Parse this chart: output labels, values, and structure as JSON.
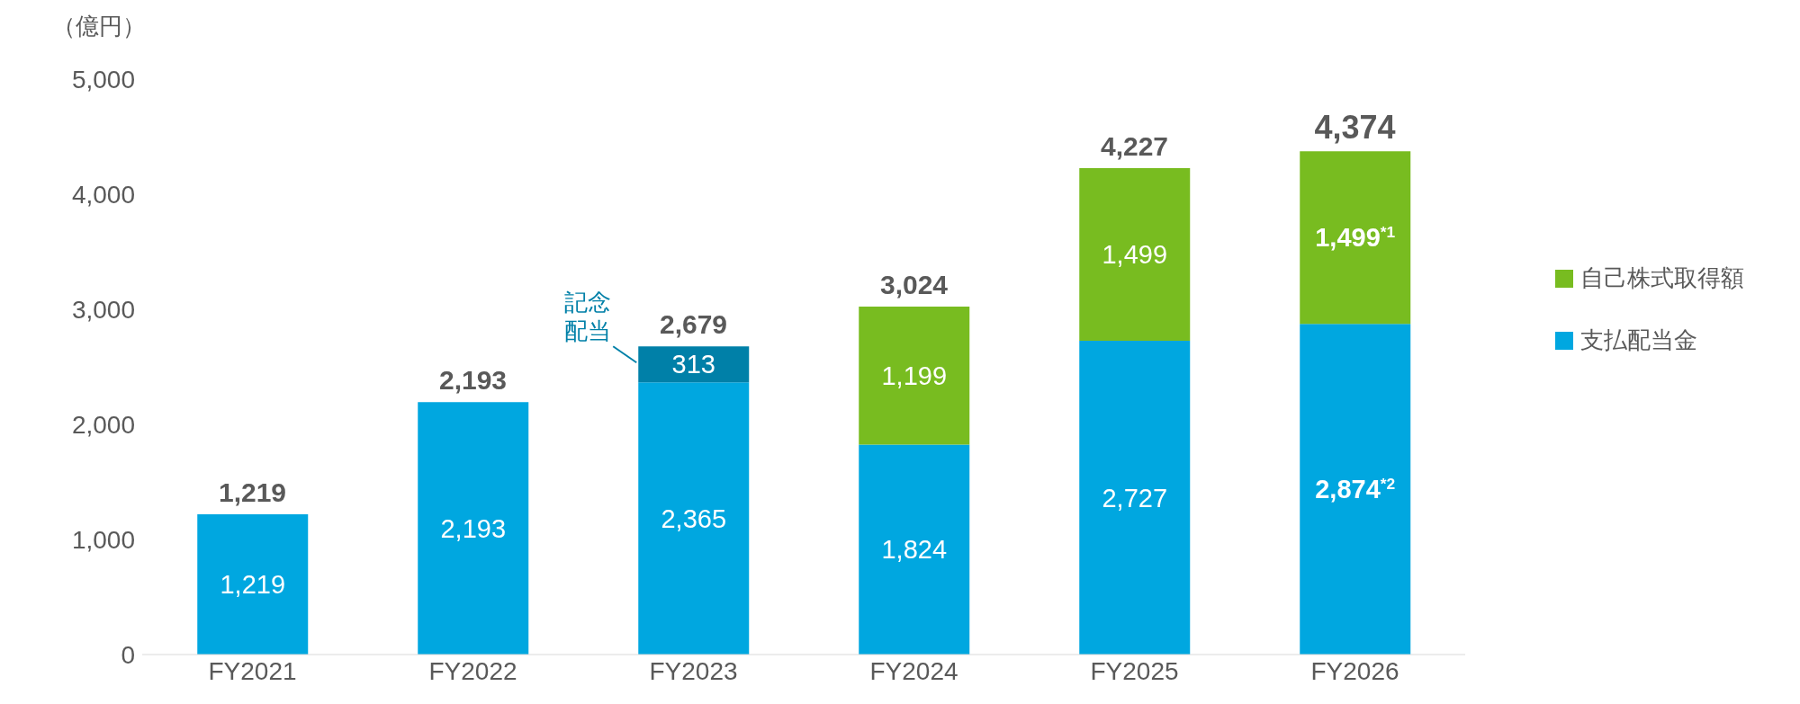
{
  "chart_data": {
    "type": "bar",
    "stacked": true,
    "ylabel": "（億円）",
    "categories": [
      "FY2021",
      "FY2022",
      "FY2023",
      "FY2024",
      "FY2025",
      "FY2026"
    ],
    "series": [
      {
        "name": "支払配当金",
        "color": "#00a7e0",
        "values": [
          1219,
          2193,
          2365,
          1824,
          2727,
          2874
        ],
        "value_labels": [
          "1,219",
          "2,193",
          "2,365",
          "1,824",
          "2,727",
          "2,874$^{*2}$"
        ]
      },
      {
        "color": "#0080a8",
        "values": [
          null,
          null,
          313,
          null,
          null,
          null
        ],
        "value_labels": [
          null,
          null,
          "313",
          null,
          null,
          null
        ]
      },
      {
        "name": "自己株式取得額",
        "color": "#78bc20",
        "values": [
          null,
          null,
          null,
          1199,
          1499,
          1499
        ],
        "value_labels": [
          null,
          null,
          null,
          "1,199",
          "1,499",
          "1,499$^{*1}$"
        ]
      }
    ],
    "totals": [
      "1,219",
      "2,193",
      "2,679",
      "3,024",
      "4,227",
      "4,374"
    ],
    "annotations": [
      "記念配当"
    ],
    "ylim": [
      0,
      5000
    ],
    "yticks": [
      0,
      {
        "value": 1000,
        "label": "1,000"
      },
      {
        "value": 2000,
        "label": "2,000"
      },
      {
        "value": 3000,
        "label": "3,000"
      },
      {
        "value": 4000,
        "label": "4,000"
      },
      {
        "value": 5000,
        "label": "5,000"
      }
    ],
    "grid": false,
    "legend": "right"
  }
}
